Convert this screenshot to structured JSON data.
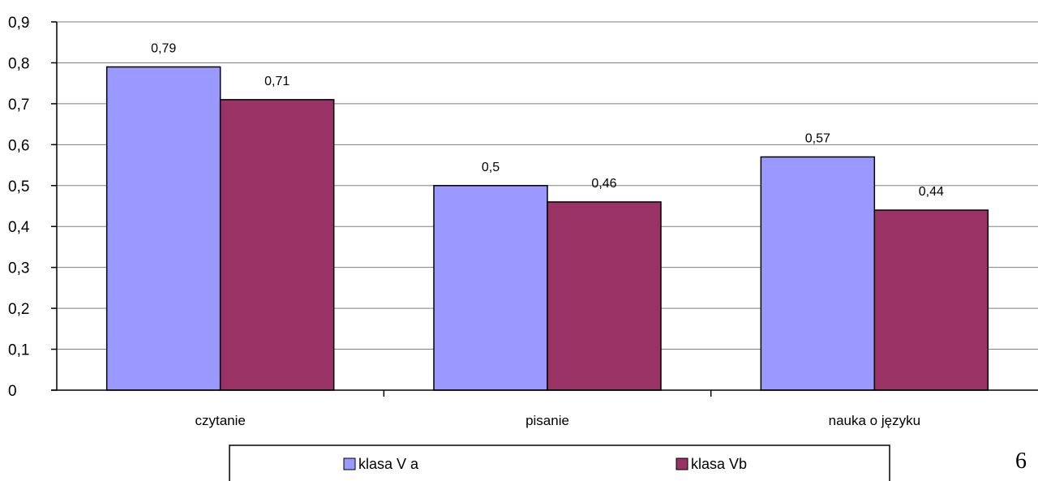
{
  "chart_data": {
    "type": "bar",
    "title": "",
    "xlabel": "",
    "ylabel": "",
    "categories": [
      "czytanie",
      "pisanie",
      "nauka o języku"
    ],
    "series": [
      {
        "name": "klasa V a",
        "values": [
          0.79,
          0.5,
          0.57
        ],
        "labels": [
          "0,79",
          "0,5",
          "0,57"
        ],
        "color": "#9999ff"
      },
      {
        "name": "klasa Vb",
        "values": [
          0.71,
          0.46,
          0.44
        ],
        "labels": [
          "0,71",
          "0,46",
          "0,44"
        ],
        "color": "#993366"
      }
    ],
    "ylim": [
      0,
      0.9
    ],
    "yticks": [
      "0",
      "0,1",
      "0,2",
      "0,3",
      "0,4",
      "0,5",
      "0,6",
      "0,7",
      "0,8",
      "0,9"
    ],
    "grid": true,
    "legend_position": "bottom"
  },
  "page": {
    "number": "6"
  }
}
